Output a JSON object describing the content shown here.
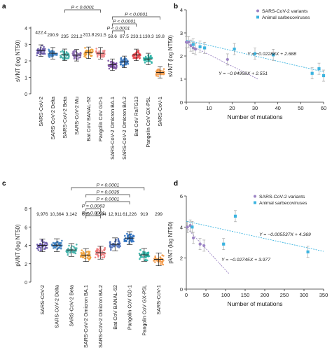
{
  "chart_data": [
    {
      "panel": "a",
      "type": "scatter",
      "ylabel": "sVNT (log NT50)",
      "ylim": [
        0,
        4
      ],
      "yticks": [
        0,
        1,
        2,
        3,
        4
      ],
      "categories": [
        "SARS-CoV-2",
        "SARS-CoV-2 Delta",
        "SARS-CoV-2 Beta",
        "SARS-CoV-2 Mu",
        "Bat CoV BANAL-52",
        "Pangolin CoV GD-1",
        "SARS-CoV-2 Omicron BA.1",
        "SARS-CoV-2 Omicron BA.2",
        "Bat CoV RaTG13",
        "Pangolin CoV GX-P5L",
        "SARS-CoV-1"
      ],
      "values": [
        422.4,
        290.9,
        235,
        221.2,
        311.8,
        291.5,
        58.6,
        87.5,
        233.1,
        130.3,
        19.8
      ],
      "value_labels": [
        "422.4",
        "290.9",
        "235",
        "221.2",
        "311.8",
        "291.5",
        "58.6",
        "87.5",
        "233.1",
        "130.3",
        "19.8"
      ],
      "colors": [
        "#6a5aa8",
        "#3f82c2",
        "#42b0a8",
        "#8a6ab0",
        "#f2a23a",
        "#f08a8c",
        "#7a4fa0",
        "#3a78c0",
        "#e8424a",
        "#2bb3a5",
        "#f39a4a"
      ],
      "annotations": [
        {
          "label": "P < 0.0001",
          "from": 2,
          "to": 5
        },
        {
          "label": "P < 0.0001",
          "from": 6,
          "to": 10
        },
        {
          "label": "P < 0.0001",
          "from": 6,
          "to": 8
        },
        {
          "label": "P < 0.0001",
          "from": 6,
          "to": 7
        }
      ]
    },
    {
      "panel": "b",
      "type": "scatter",
      "xlabel": "Number of mutations",
      "ylabel": "sVNT (log NT50)",
      "xlim": [
        0,
        60
      ],
      "ylim": [
        0,
        4
      ],
      "xticks": [
        0,
        10,
        20,
        30,
        40,
        50,
        60
      ],
      "yticks": [
        0,
        1,
        2,
        3,
        4
      ],
      "legend": "top-right",
      "series": [
        {
          "name": "SARS-CoV-2 variants",
          "color": "#9b83c4",
          "points": [
            [
              0,
              2.6
            ],
            [
              1,
              2.6
            ],
            [
              2,
              2.45
            ],
            [
              3,
              2.35
            ],
            [
              4,
              2.3
            ],
            [
              18,
              1.85
            ]
          ],
          "fit": "Y = −0.04958X + 2.551",
          "slope": -0.04958,
          "intercept": 2.551
        },
        {
          "name": "Animal sarbecoviruses",
          "color": "#3cb4e0",
          "points": [
            [
              3,
              2.5
            ],
            [
              6,
              2.4
            ],
            [
              8,
              2.35
            ],
            [
              21,
              2.3
            ],
            [
              30,
              2.1
            ],
            [
              38,
              2.05
            ],
            [
              55,
              1.25
            ],
            [
              58,
              1.45
            ],
            [
              60,
              1.15
            ]
          ],
          "fit": "Y = −0.02288X + 2.688",
          "slope": -0.02288,
          "intercept": 2.688
        }
      ]
    },
    {
      "panel": "c",
      "type": "scatter",
      "ylabel": "pVNT (log NT50)",
      "ylim": [
        0,
        8
      ],
      "yticks": [
        0,
        2,
        4,
        6,
        8
      ],
      "categories": [
        "SARS-CoV-2",
        "SARS-CoV-2 Delta",
        "SARS-CoV-2 Beta",
        "SARS-CoV-2 Omicron BA.1",
        "SARS-CoV-2 Omicron BA.2",
        "Bat CoV BANAL-52",
        "Pangolin CoV GD-1",
        "Pangolin CoV GX-P5L",
        "SARS-CoV-1"
      ],
      "values": [
        9976,
        10364,
        3142,
        869,
        1584,
        12911,
        61226,
        919,
        299
      ],
      "value_labels": [
        "9,976",
        "10,364",
        "3,142",
        "869",
        "1,584",
        "12,911",
        "61,226",
        "919",
        "299"
      ],
      "colors": [
        "#6a5aa8",
        "#3f82c2",
        "#42b0a8",
        "#f2a23a",
        "#f07a7c",
        "#4a6cb8",
        "#2a6fc0",
        "#2bb3a5",
        "#f39a4a"
      ],
      "annotations": [
        {
          "label": "P < 0.0001",
          "from": 2,
          "to": 7
        },
        {
          "label": "P = 0.0035",
          "from": 3,
          "to": 6
        },
        {
          "label": "P < 0.0001",
          "from": 3,
          "to": 6
        },
        {
          "label": "P = 0.0063",
          "from": 3,
          "to": 4
        },
        {
          "label": "P < 0.0001",
          "from": 3,
          "to": 4
        }
      ]
    },
    {
      "panel": "d",
      "type": "scatter",
      "xlabel": "Number of mutations",
      "ylabel": "pVNT (log NT50)",
      "xlim": [
        0,
        350
      ],
      "ylim": [
        0,
        6
      ],
      "xticks": [
        0,
        50,
        100,
        150,
        200,
        250,
        300,
        350
      ],
      "yticks": [
        0,
        2,
        4,
        6
      ],
      "legend": "top-right",
      "series": [
        {
          "name": "SARS-CoV-2 variants",
          "color": "#9b83c4",
          "points": [
            [
              3,
              4.0
            ],
            [
              10,
              4.1
            ],
            [
              18,
              3.3
            ],
            [
              35,
              2.9
            ],
            [
              45,
              2.8
            ]
          ],
          "fit": "Y = −0.02745X + 3.977",
          "slope": -0.02745,
          "intercept": 3.977
        },
        {
          "name": "Animal sarbecoviruses",
          "color": "#3cb4e0",
          "points": [
            [
              15,
              4.0
            ],
            [
              95,
              2.9
            ],
            [
              125,
              4.7
            ],
            [
              310,
              2.4
            ]
          ],
          "fit": "Y = −0.005537X + 4.369",
          "slope": -0.005537,
          "intercept": 4.369
        }
      ]
    }
  ]
}
